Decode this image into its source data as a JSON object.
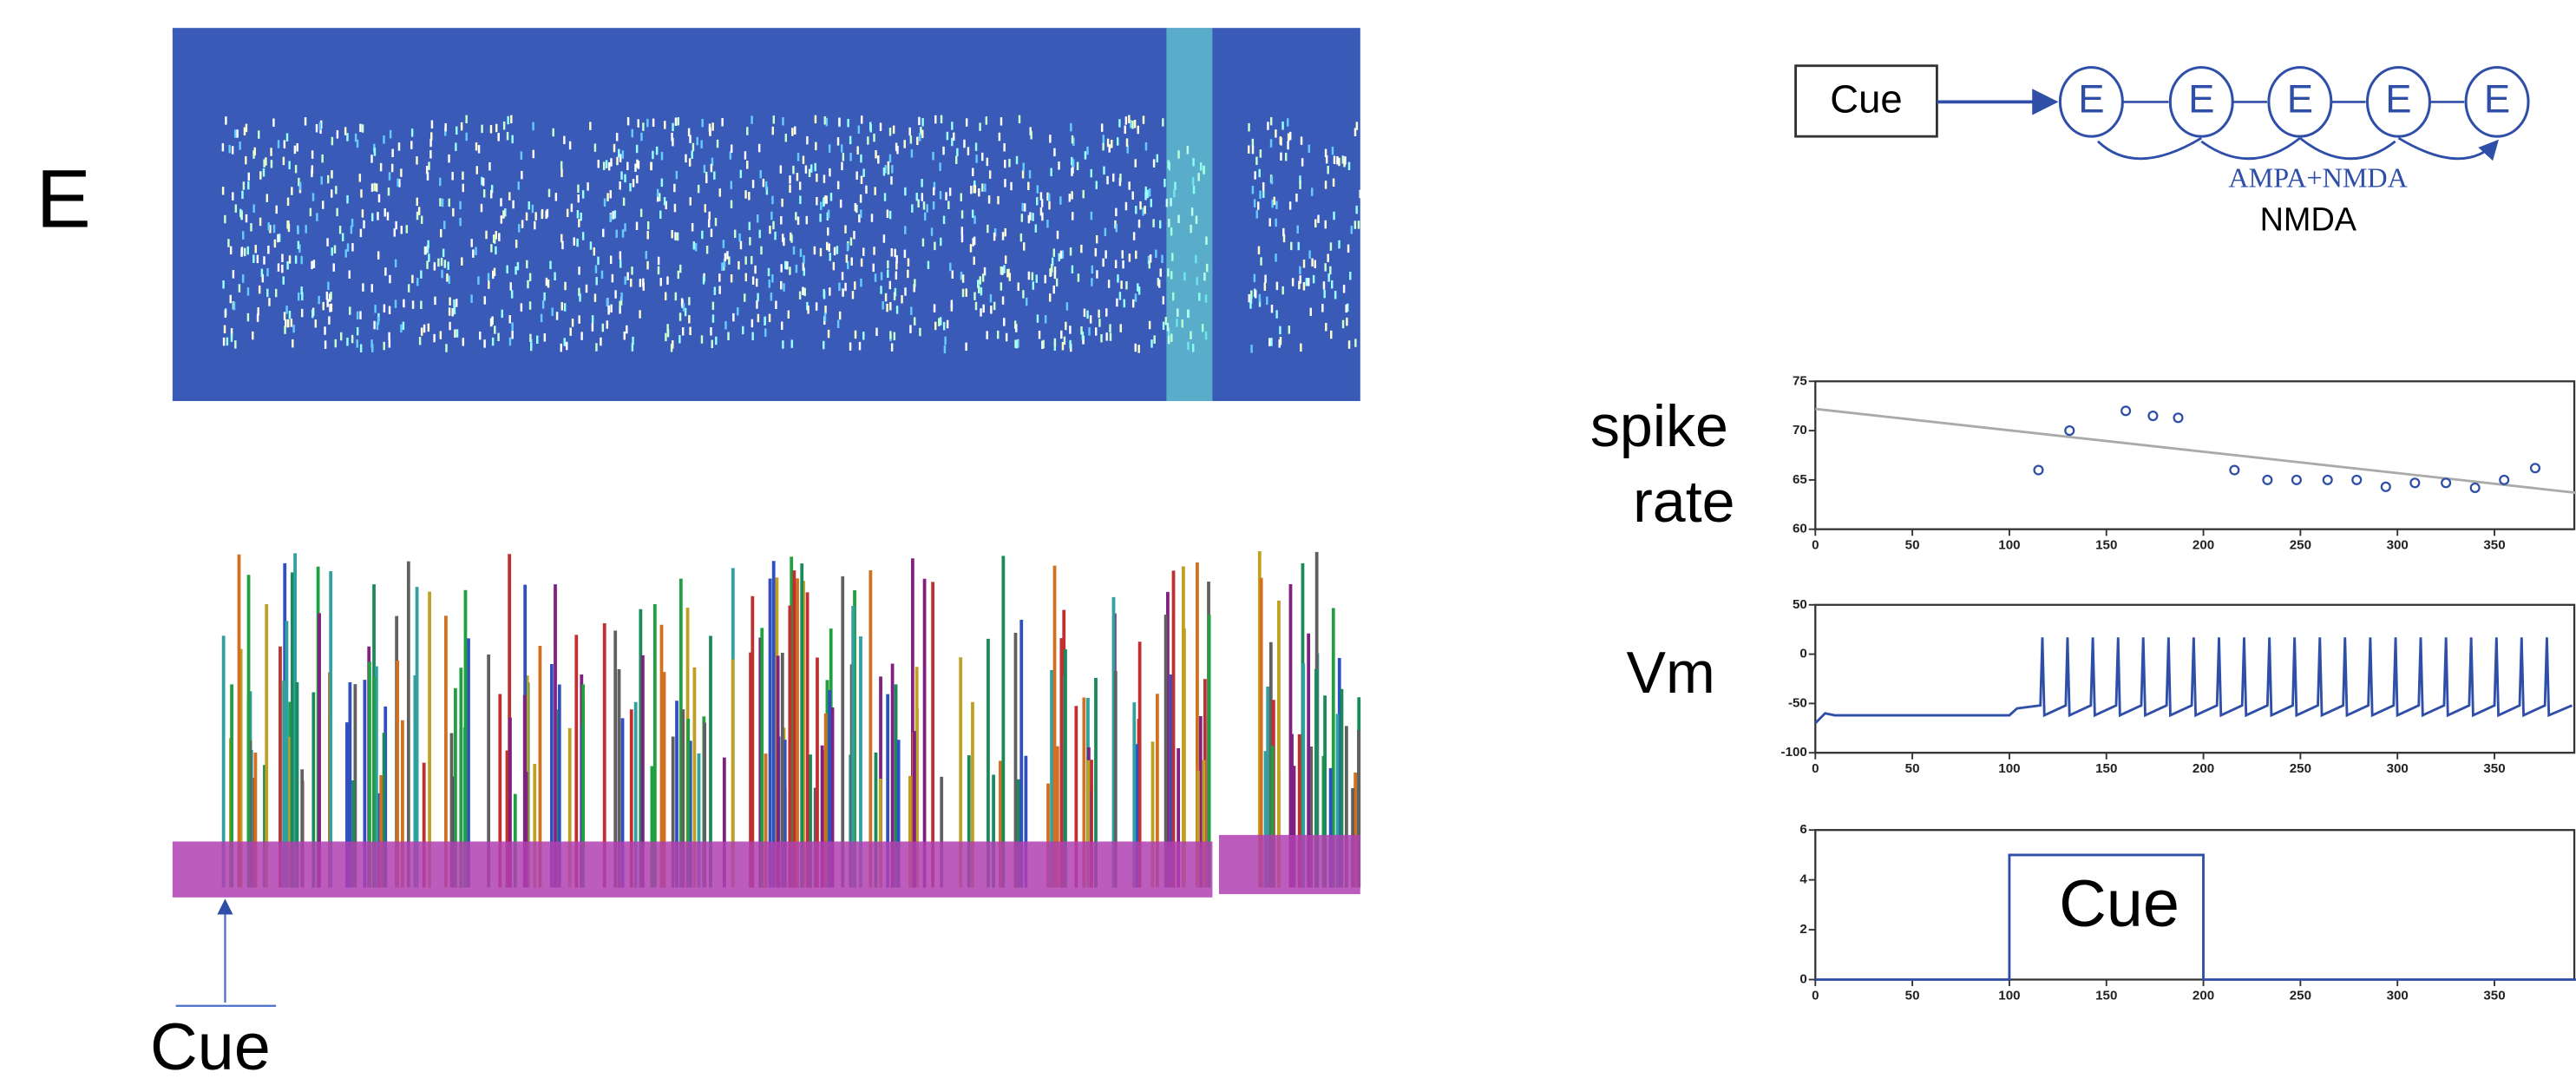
{
  "left_panel": {
    "label": "E",
    "cue_label": "Cue"
  },
  "diagram": {
    "cue": "Cue",
    "nodes": [
      "E",
      "E",
      "E",
      "E",
      "E"
    ],
    "edge_label": "AMPA+NMDA",
    "edge_label2": "NMDA"
  },
  "chart_data": [
    {
      "type": "scatter",
      "label": [
        "spike",
        "rate"
      ],
      "color": "#2e4ea8",
      "x": [
        115,
        131,
        160,
        174,
        187,
        216,
        233,
        248,
        264,
        279,
        294,
        309,
        325,
        340,
        355,
        371
      ],
      "values": [
        66,
        70,
        72,
        71.5,
        71.3,
        66,
        65,
        65,
        65,
        65,
        64.3,
        64.7,
        64.7,
        64.2,
        65,
        66.2
      ],
      "trend": {
        "x": [
          0,
          392
        ],
        "values": [
          72.2,
          63.7
        ],
        "color": "#aaaaaa"
      },
      "xlim": [
        0,
        392
      ],
      "xticks": [
        0,
        50,
        100,
        150,
        200,
        250,
        300,
        350
      ],
      "ylim": [
        60,
        75
      ],
      "yticks": [
        60,
        65,
        70,
        75
      ]
    },
    {
      "type": "line",
      "label": "Vm",
      "color": "#2e4ea8",
      "x": [
        0,
        5,
        10,
        100,
        104,
        116,
        117,
        118,
        129,
        130,
        131,
        142,
        143,
        144,
        155,
        156,
        157,
        168,
        169,
        170,
        181,
        182,
        183,
        194,
        195,
        196,
        207,
        208,
        209,
        220,
        221,
        222,
        233,
        234,
        235,
        246,
        247,
        248,
        259,
        260,
        261,
        272,
        273,
        274,
        285,
        286,
        287,
        298,
        299,
        300,
        311,
        312,
        313,
        324,
        325,
        326,
        337,
        338,
        339,
        350,
        351,
        352,
        363,
        364,
        365,
        376,
        377,
        378,
        390
      ],
      "values": [
        -70,
        -60,
        -62,
        -62,
        -55,
        -52,
        17,
        -62,
        -52,
        17,
        -62,
        -52,
        17,
        -62,
        -52,
        17,
        -62,
        -52,
        17,
        -62,
        -52,
        17,
        -62,
        -52,
        17,
        -62,
        -52,
        17,
        -62,
        -52,
        17,
        -62,
        -52,
        17,
        -62,
        -52,
        17,
        -62,
        -52,
        17,
        -62,
        -52,
        17,
        -62,
        -52,
        17,
        -62,
        -52,
        17,
        -62,
        -52,
        17,
        -62,
        -52,
        17,
        -62,
        -52,
        17,
        -62,
        -52,
        17,
        -62,
        -52,
        17,
        -62,
        -52,
        17,
        -62,
        -52
      ],
      "xlim": [
        0,
        392
      ],
      "xticks": [
        0,
        50,
        100,
        150,
        200,
        250,
        300,
        350
      ],
      "ylim": [
        -100,
        50
      ],
      "yticks": [
        -100,
        -50,
        0,
        50
      ]
    },
    {
      "type": "line",
      "annotation": "Cue",
      "color": "#2e4ea8",
      "x": [
        0,
        100,
        100,
        200,
        200,
        392
      ],
      "values": [
        0,
        0,
        5,
        5,
        0,
        0
      ],
      "xlim": [
        0,
        392
      ],
      "xticks": [
        0,
        50,
        100,
        150,
        200,
        250,
        300,
        350
      ],
      "ylim": [
        0,
        6
      ],
      "yticks": [
        0,
        2,
        4,
        6
      ]
    }
  ]
}
